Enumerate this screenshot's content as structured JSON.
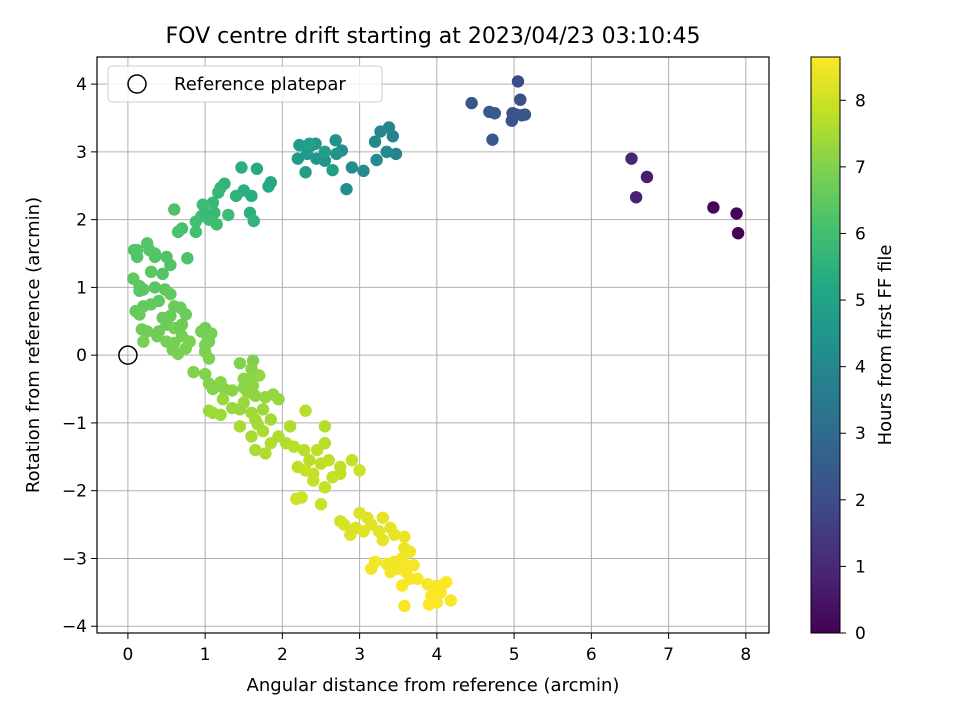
{
  "chart_data": {
    "type": "scatter",
    "title": "FOV centre drift starting at 2023/04/23 03:10:45",
    "xlabel": "Angular distance from reference (arcmin)",
    "ylabel": "Rotation from reference (arcmin)",
    "xlim": [
      -0.4,
      8.3
    ],
    "ylim": [
      -4.1,
      4.4
    ],
    "x_ticks": [
      0,
      1,
      2,
      3,
      4,
      5,
      6,
      7,
      8
    ],
    "y_ticks": [
      -4,
      -3,
      -2,
      -1,
      0,
      1,
      2,
      3,
      4
    ],
    "grid": true,
    "legend": {
      "placement": "top-left",
      "entries": [
        "Reference platepar"
      ]
    },
    "reference_point": {
      "x": 0,
      "y": 0,
      "marker": "open-circle"
    },
    "colorbar": {
      "label": "Hours from first FF file",
      "range": [
        0,
        8.65
      ],
      "ticks": [
        0,
        1,
        2,
        3,
        4,
        5,
        6,
        7,
        8
      ],
      "colormap": "viridis"
    },
    "points": [
      [
        7.9,
        1.8,
        0.05
      ],
      [
        7.88,
        2.09,
        0.1
      ],
      [
        7.58,
        2.18,
        0.2
      ],
      [
        6.72,
        2.63,
        0.7
      ],
      [
        6.58,
        2.33,
        0.8
      ],
      [
        6.52,
        2.9,
        0.9
      ],
      [
        5.05,
        4.04,
        2.0
      ],
      [
        5.08,
        3.77,
        2.05
      ],
      [
        4.98,
        3.57,
        2.1
      ],
      [
        5.1,
        3.54,
        2.15
      ],
      [
        4.97,
        3.46,
        2.2
      ],
      [
        5.03,
        3.55,
        2.25
      ],
      [
        4.45,
        3.72,
        2.3
      ],
      [
        4.68,
        3.59,
        2.35
      ],
      [
        4.75,
        3.57,
        2.4
      ],
      [
        4.72,
        3.18,
        2.45
      ],
      [
        5.14,
        3.55,
        2.3
      ],
      [
        3.47,
        2.97,
        3.8
      ],
      [
        3.43,
        3.23,
        3.85
      ],
      [
        3.38,
        3.36,
        3.9
      ],
      [
        3.27,
        3.3,
        3.95
      ],
      [
        3.35,
        3.0,
        4.0
      ],
      [
        3.2,
        3.15,
        4.05
      ],
      [
        3.22,
        2.88,
        4.1
      ],
      [
        3.05,
        2.72,
        4.15
      ],
      [
        2.9,
        2.77,
        4.2
      ],
      [
        2.83,
        2.45,
        4.25
      ],
      [
        2.77,
        3.02,
        4.3
      ],
      [
        2.69,
        3.17,
        4.35
      ],
      [
        2.7,
        2.97,
        4.4
      ],
      [
        2.55,
        2.87,
        4.45
      ],
      [
        2.44,
        2.9,
        4.5
      ],
      [
        2.38,
        3.1,
        4.55
      ],
      [
        2.43,
        3.12,
        4.6
      ],
      [
        2.32,
        2.97,
        4.65
      ],
      [
        2.2,
        2.9,
        4.7
      ],
      [
        2.22,
        3.1,
        4.75
      ],
      [
        2.3,
        2.7,
        4.8
      ],
      [
        2.55,
        3.0,
        4.85
      ],
      [
        2.65,
        2.73,
        4.9
      ],
      [
        2.35,
        3.12,
        4.95
      ],
      [
        1.85,
        2.55,
        5.2
      ],
      [
        1.82,
        2.49,
        5.25
      ],
      [
        1.67,
        2.75,
        5.3
      ],
      [
        1.6,
        2.35,
        5.35
      ],
      [
        1.47,
        2.77,
        5.4
      ],
      [
        1.5,
        2.43,
        5.45
      ],
      [
        1.58,
        2.1,
        5.5
      ],
      [
        1.4,
        2.35,
        5.55
      ],
      [
        1.25,
        2.53,
        5.6
      ],
      [
        1.2,
        2.47,
        5.65
      ],
      [
        1.17,
        2.4,
        5.7
      ],
      [
        1.1,
        2.25,
        5.75
      ],
      [
        1.12,
        2.1,
        5.8
      ],
      [
        1.05,
        2.0,
        5.85
      ],
      [
        0.97,
        2.22,
        5.9
      ],
      [
        0.95,
        2.05,
        5.95
      ],
      [
        0.88,
        1.97,
        6.0
      ],
      [
        0.88,
        1.82,
        6.05
      ],
      [
        0.7,
        1.87,
        6.1
      ],
      [
        0.65,
        1.82,
        6.15
      ],
      [
        0.6,
        2.15,
        6.2
      ],
      [
        1.15,
        1.93,
        5.95
      ],
      [
        1.3,
        2.07,
        5.9
      ],
      [
        1.63,
        1.98,
        5.6
      ],
      [
        1.0,
        2.1,
        5.8
      ],
      [
        0.77,
        1.43,
        6.2
      ],
      [
        0.55,
        1.33,
        6.25
      ],
      [
        0.5,
        1.45,
        6.25
      ],
      [
        0.45,
        1.2,
        6.3
      ],
      [
        0.35,
        1.45,
        6.3
      ],
      [
        0.28,
        1.55,
        6.3
      ],
      [
        0.25,
        1.65,
        6.3
      ],
      [
        0.12,
        1.55,
        6.35
      ],
      [
        0.12,
        1.45,
        6.35
      ],
      [
        0.3,
        1.23,
        6.4
      ],
      [
        0.35,
        1.0,
        6.4
      ],
      [
        0.2,
        0.97,
        6.45
      ],
      [
        0.15,
        1.02,
        6.45
      ],
      [
        0.07,
        1.13,
        6.45
      ],
      [
        0.4,
        0.8,
        6.5
      ],
      [
        0.48,
        0.97,
        6.5
      ],
      [
        0.55,
        0.9,
        6.55
      ],
      [
        0.3,
        0.75,
        6.55
      ],
      [
        0.2,
        0.72,
        6.55
      ],
      [
        0.15,
        0.6,
        6.6
      ],
      [
        0.1,
        0.65,
        6.6
      ],
      [
        0.45,
        0.55,
        6.6
      ],
      [
        0.55,
        0.58,
        6.65
      ],
      [
        0.6,
        0.72,
        6.65
      ],
      [
        0.68,
        0.7,
        6.65
      ],
      [
        0.75,
        0.6,
        6.7
      ],
      [
        0.5,
        0.45,
        6.7
      ],
      [
        0.4,
        0.35,
        6.7
      ],
      [
        0.25,
        0.35,
        6.75
      ],
      [
        0.18,
        0.38,
        6.75
      ],
      [
        0.38,
        0.28,
        6.75
      ],
      [
        0.6,
        0.4,
        6.8
      ],
      [
        0.7,
        0.28,
        6.8
      ],
      [
        0.6,
        0.18,
        6.8
      ],
      [
        0.5,
        0.2,
        6.85
      ],
      [
        0.58,
        0.08,
        6.85
      ],
      [
        0.65,
        0.02,
        6.9
      ],
      [
        0.75,
        0.1,
        6.9
      ],
      [
        0.8,
        0.2,
        6.9
      ],
      [
        0.68,
        0.42,
        6.7
      ],
      [
        1.0,
        0.4,
        6.75
      ],
      [
        1.03,
        0.28,
        6.8
      ],
      [
        1.05,
        0.2,
        6.85
      ],
      [
        1.08,
        0.32,
        6.85
      ],
      [
        1.0,
        0.15,
        6.9
      ],
      [
        1.0,
        0.05,
        6.9
      ],
      [
        1.05,
        -0.05,
        6.95
      ],
      [
        0.95,
        0.35,
        6.8
      ],
      [
        0.2,
        0.2,
        6.85
      ],
      [
        0.7,
        0.45,
        6.7
      ],
      [
        0.15,
        0.95,
        6.4
      ],
      [
        0.08,
        1.55,
        6.3
      ],
      [
        0.35,
        1.5,
        6.3
      ],
      [
        0.85,
        -0.25,
        7.0
      ],
      [
        1.0,
        -0.28,
        7.0
      ],
      [
        1.05,
        -0.42,
        7.05
      ],
      [
        1.1,
        -0.5,
        7.05
      ],
      [
        1.2,
        -0.4,
        7.1
      ],
      [
        1.25,
        -0.5,
        7.1
      ],
      [
        1.35,
        -0.52,
        7.1
      ],
      [
        1.5,
        -0.35,
        7.15
      ],
      [
        1.5,
        -0.48,
        7.15
      ],
      [
        1.58,
        -0.35,
        7.15
      ],
      [
        1.55,
        -0.55,
        7.2
      ],
      [
        1.62,
        -0.45,
        7.2
      ],
      [
        1.65,
        -0.6,
        7.2
      ],
      [
        1.7,
        -0.3,
        7.25
      ],
      [
        1.78,
        -0.62,
        7.25
      ],
      [
        1.88,
        -0.58,
        7.25
      ],
      [
        1.45,
        -0.8,
        7.3
      ],
      [
        1.35,
        -0.78,
        7.3
      ],
      [
        1.2,
        -0.88,
        7.35
      ],
      [
        1.05,
        -0.82,
        7.35
      ],
      [
        1.1,
        -0.85,
        7.4
      ],
      [
        1.23,
        -0.65,
        7.3
      ],
      [
        1.5,
        -0.7,
        7.35
      ],
      [
        1.6,
        -0.85,
        7.4
      ],
      [
        1.75,
        -0.8,
        7.4
      ],
      [
        1.85,
        -0.95,
        7.45
      ],
      [
        1.65,
        -0.95,
        7.45
      ],
      [
        1.45,
        -1.05,
        7.5
      ],
      [
        1.6,
        -1.2,
        7.5
      ],
      [
        1.75,
        -1.12,
        7.55
      ],
      [
        1.65,
        -1.4,
        7.55
      ],
      [
        1.85,
        -1.3,
        7.6
      ],
      [
        1.95,
        -1.2,
        7.6
      ],
      [
        2.1,
        -1.05,
        7.6
      ],
      [
        2.05,
        -1.3,
        7.65
      ],
      [
        2.3,
        -0.82,
        7.7
      ],
      [
        2.15,
        -1.35,
        7.7
      ],
      [
        2.28,
        -1.4,
        7.75
      ],
      [
        2.35,
        -1.55,
        7.75
      ],
      [
        2.2,
        -1.65,
        7.8
      ],
      [
        2.45,
        -1.4,
        7.8
      ],
      [
        2.5,
        -1.6,
        7.8
      ],
      [
        2.6,
        -1.55,
        7.85
      ],
      [
        2.65,
        -1.8,
        7.85
      ],
      [
        2.55,
        -1.95,
        7.9
      ],
      [
        2.4,
        -1.75,
        7.9
      ],
      [
        2.3,
        -1.7,
        7.9
      ],
      [
        2.5,
        -2.2,
        7.95
      ],
      [
        2.25,
        -2.1,
        8.0
      ],
      [
        2.18,
        -2.12,
        8.0
      ],
      [
        2.75,
        -1.65,
        7.85
      ],
      [
        2.9,
        -1.55,
        7.9
      ],
      [
        3.0,
        -1.7,
        7.95
      ],
      [
        2.55,
        -1.3,
        7.7
      ],
      [
        2.55,
        -1.05,
        7.65
      ],
      [
        1.62,
        -0.08,
        7.0
      ],
      [
        1.45,
        -0.12,
        7.0
      ],
      [
        1.6,
        -0.2,
        7.05
      ],
      [
        1.95,
        -0.65,
        7.3
      ],
      [
        1.68,
        -1.02,
        7.45
      ],
      [
        1.78,
        -1.45,
        7.6
      ],
      [
        2.4,
        -1.85,
        7.9
      ],
      [
        2.75,
        -1.75,
        7.85
      ],
      [
        2.75,
        -2.45,
        8.1
      ],
      [
        2.8,
        -2.5,
        8.15
      ],
      [
        2.88,
        -2.65,
        8.2
      ],
      [
        3.0,
        -2.33,
        8.2
      ],
      [
        3.1,
        -2.4,
        8.25
      ],
      [
        3.15,
        -2.5,
        8.25
      ],
      [
        3.25,
        -2.6,
        8.3
      ],
      [
        3.3,
        -2.73,
        8.3
      ],
      [
        3.4,
        -2.55,
        8.35
      ],
      [
        3.45,
        -2.65,
        8.35
      ],
      [
        3.58,
        -2.68,
        8.4
      ],
      [
        3.58,
        -2.85,
        8.4
      ],
      [
        3.65,
        -2.9,
        8.45
      ],
      [
        3.55,
        -3.0,
        8.45
      ],
      [
        3.45,
        -3.05,
        8.45
      ],
      [
        3.35,
        -3.08,
        8.5
      ],
      [
        3.2,
        -3.05,
        8.5
      ],
      [
        3.15,
        -3.15,
        8.5
      ],
      [
        3.4,
        -3.2,
        8.5
      ],
      [
        3.5,
        -3.15,
        8.55
      ],
      [
        3.6,
        -3.1,
        8.55
      ],
      [
        3.65,
        -3.3,
        8.55
      ],
      [
        3.55,
        -3.4,
        8.6
      ],
      [
        3.58,
        -3.7,
        8.6
      ],
      [
        3.75,
        -3.3,
        8.6
      ],
      [
        3.88,
        -3.38,
        8.6
      ],
      [
        4.0,
        -3.4,
        8.6
      ],
      [
        4.05,
        -3.5,
        8.6
      ],
      [
        4.12,
        -3.35,
        8.62
      ],
      [
        4.18,
        -3.62,
        8.62
      ],
      [
        4.0,
        -3.65,
        8.62
      ],
      [
        3.93,
        -3.55,
        8.62
      ],
      [
        3.9,
        -3.68,
        8.62
      ],
      [
        3.5,
        -3.05,
        8.5
      ],
      [
        3.6,
        -3.2,
        8.55
      ],
      [
        3.7,
        -3.1,
        8.55
      ],
      [
        2.95,
        -2.55,
        8.2
      ],
      [
        3.3,
        -2.4,
        8.3
      ],
      [
        3.05,
        -2.6,
        8.25
      ]
    ]
  }
}
